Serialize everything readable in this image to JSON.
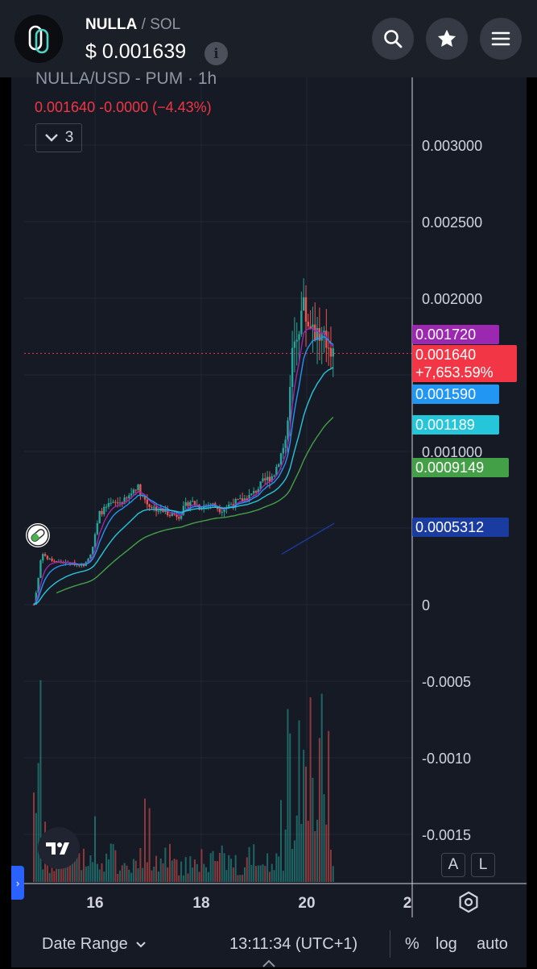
{
  "header": {
    "token_name": "NULLA",
    "separator": "/",
    "chain": "SOL",
    "price_prefix": "$",
    "price": "0.001639",
    "info_icon": "info-icon",
    "buttons": [
      "search-icon",
      "star-icon",
      "menu-icon"
    ]
  },
  "legend": {
    "title": "NULLA/USD - PUM · 1h",
    "values": "0.001640  -0.0000 (−4.43%)",
    "indicator_count": "3"
  },
  "price_tags": [
    {
      "label": "0.001720",
      "color": "#9c27b0"
    },
    {
      "label": "0.001640",
      "sublabel": "+7,653.59%",
      "color": "#f23645"
    },
    {
      "label": "0.001590",
      "color": "#2196f3"
    },
    {
      "label": "0.001189",
      "color": "#26c6da"
    },
    {
      "label": "0.0009149",
      "color": "#43a047"
    },
    {
      "label": "0.0005312",
      "color": "#1a3ba0"
    }
  ],
  "chart_data": {
    "type": "candlestick",
    "y_axis_ticks": [
      "0.003000",
      "0.002500",
      "0.002000",
      "0.001000",
      "0",
      "-0.0005",
      "-0.0010",
      "-0.0015"
    ],
    "x_axis_ticks": [
      "16",
      "18",
      "20",
      "2"
    ],
    "ylim": [
      -0.0018,
      0.0034
    ],
    "grid": true,
    "current_price": 0.00164,
    "price_path": [
      [
        14.85,
        0.0
      ],
      [
        14.95,
        0.0002
      ],
      [
        15.0,
        0.00035
      ],
      [
        15.1,
        0.0003
      ],
      [
        15.3,
        0.00028
      ],
      [
        15.5,
        0.00027
      ],
      [
        15.8,
        0.00026
      ],
      [
        15.95,
        0.00035
      ],
      [
        16.1,
        0.0006
      ],
      [
        16.3,
        0.00065
      ],
      [
        16.6,
        0.00068
      ],
      [
        16.8,
        0.00078
      ],
      [
        17.0,
        0.00066
      ],
      [
        17.2,
        0.00062
      ],
      [
        17.4,
        0.0006
      ],
      [
        17.6,
        0.00058
      ],
      [
        17.8,
        0.00068
      ],
      [
        18.0,
        0.00064
      ],
      [
        18.2,
        0.00066
      ],
      [
        18.4,
        0.00062
      ],
      [
        18.6,
        0.00066
      ],
      [
        18.8,
        0.00068
      ],
      [
        19.0,
        0.00072
      ],
      [
        19.2,
        0.0008
      ],
      [
        19.4,
        0.00085
      ],
      [
        19.55,
        0.001
      ],
      [
        19.65,
        0.0011
      ],
      [
        19.75,
        0.0016
      ],
      [
        19.85,
        0.0018
      ],
      [
        19.95,
        0.00195
      ],
      [
        20.05,
        0.00185
      ],
      [
        20.15,
        0.00185
      ],
      [
        20.25,
        0.00175
      ],
      [
        20.35,
        0.0017
      ],
      [
        20.45,
        0.00172
      ],
      [
        20.55,
        0.00164
      ]
    ],
    "ma_series": [
      {
        "color": "#9c27b0",
        "last": 0.00172
      },
      {
        "color": "#2196f3",
        "last": 0.00159
      },
      {
        "color": "#26c6da",
        "last": 0.001189
      },
      {
        "color": "#43a047",
        "last": 0.0009149
      },
      {
        "color": "#1a3ba0",
        "last": 0.0005312
      }
    ],
    "volume": true
  },
  "tools": {
    "auto_scale_a": "A",
    "log_l": "L",
    "settings_icon": "gear-icon"
  },
  "bottom_bar": {
    "date_range": "Date Range",
    "time": "13:11:34 (UTC+1)",
    "percent": "%",
    "log": "log",
    "auto": "auto"
  }
}
